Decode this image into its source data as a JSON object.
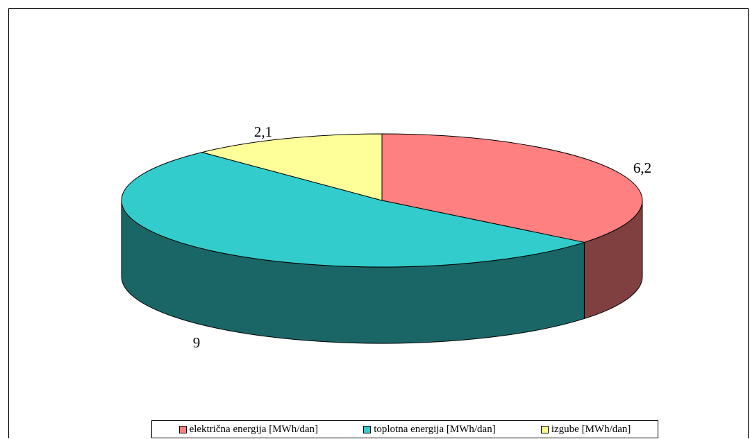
{
  "chart_data": {
    "type": "pie",
    "title": "",
    "slices": [
      {
        "label": "električna energija [MWh/dan]",
        "value": 6.2,
        "value_label": "6,2",
        "color": "#FF8080",
        "side_color": "#804040"
      },
      {
        "label": "toplotna energija [MWh/dan]",
        "value": 9,
        "value_label": "9",
        "color": "#33CCCC",
        "side_color": "#1A6666"
      },
      {
        "label": "izgube [MWh/dan]",
        "value": 2.1,
        "value_label": "2,1",
        "color": "#FFFF99",
        "side_color": "#80804C"
      }
    ],
    "legend_position": "bottom",
    "three_d": true
  }
}
